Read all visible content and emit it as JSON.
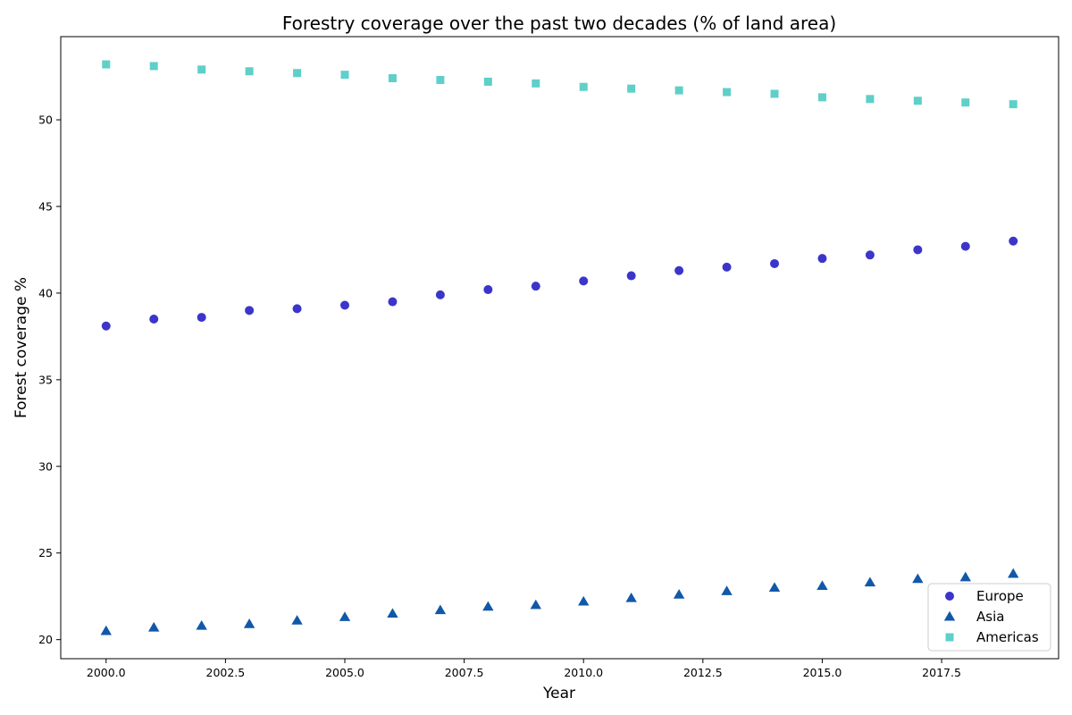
{
  "chart_data": {
    "type": "scatter",
    "title": "Forestry coverage over the past two decades (% of land area)",
    "xlabel": "Year",
    "ylabel": "Forest coverage %",
    "xlim": [
      1999.05,
      2019.95
    ],
    "ylim": [
      18.9,
      54.8
    ],
    "x_ticks": [
      2000.0,
      2002.5,
      2005.0,
      2007.5,
      2010.0,
      2012.5,
      2015.0,
      2017.5
    ],
    "x_tick_labels": [
      "2000.0",
      "2002.5",
      "2005.0",
      "2007.5",
      "2010.0",
      "2012.5",
      "2015.0",
      "2017.5"
    ],
    "y_ticks": [
      20,
      25,
      30,
      35,
      40,
      45,
      50
    ],
    "y_tick_labels": [
      "20",
      "25",
      "30",
      "35",
      "40",
      "45",
      "50"
    ],
    "grid": false,
    "legend_position": "lower-right",
    "x": [
      2000,
      2001,
      2002,
      2003,
      2004,
      2005,
      2006,
      2007,
      2008,
      2009,
      2010,
      2011,
      2012,
      2013,
      2014,
      2015,
      2016,
      2017,
      2018,
      2019
    ],
    "series": [
      {
        "name": "Europe",
        "marker": "circle",
        "color": "#3c35c9",
        "values": [
          38.1,
          38.5,
          38.6,
          39.0,
          39.1,
          39.3,
          39.5,
          39.9,
          40.2,
          40.4,
          40.7,
          41.0,
          41.3,
          41.5,
          41.7,
          42.0,
          42.2,
          42.5,
          42.7,
          43.0
        ]
      },
      {
        "name": "Asia",
        "marker": "triangle",
        "color": "#1158a8",
        "values": [
          20.5,
          20.7,
          20.8,
          20.9,
          21.1,
          21.3,
          21.5,
          21.7,
          21.9,
          22.0,
          22.2,
          22.4,
          22.6,
          22.8,
          23.0,
          23.1,
          23.3,
          23.5,
          23.6,
          23.8
        ]
      },
      {
        "name": "Americas",
        "marker": "square",
        "color": "#5fcfc9",
        "values": [
          53.2,
          53.1,
          52.9,
          52.8,
          52.7,
          52.6,
          52.4,
          52.3,
          52.2,
          52.1,
          51.9,
          51.8,
          51.7,
          51.6,
          51.5,
          51.3,
          51.2,
          51.1,
          51.0,
          50.9
        ]
      }
    ]
  }
}
